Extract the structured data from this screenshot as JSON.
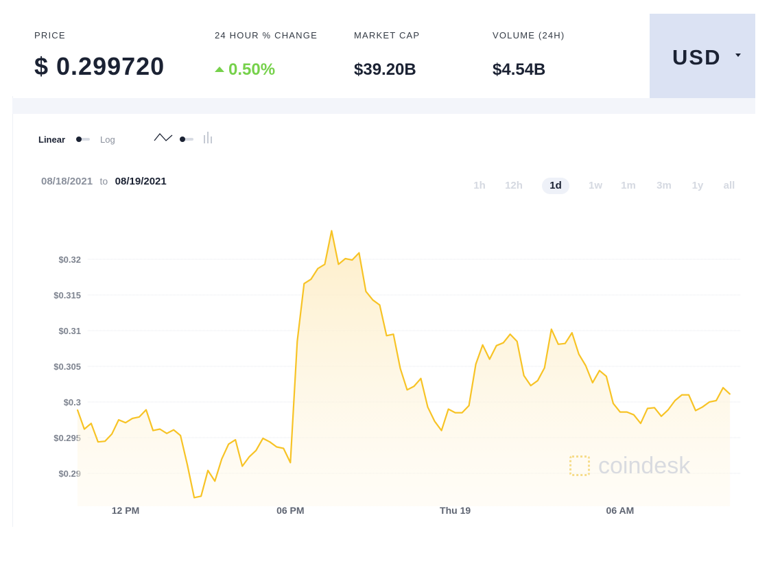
{
  "stats": {
    "price": {
      "label": "PRICE",
      "value": "$ 0.299720"
    },
    "change": {
      "label": "24 HOUR % CHANGE",
      "value": "0.50%"
    },
    "market_cap": {
      "label": "MARKET CAP",
      "value": "$39.20B"
    },
    "volume": {
      "label": "VOLUME (24H)",
      "value": "$4.54B"
    }
  },
  "currency": {
    "selected": "USD"
  },
  "controls": {
    "linear": "Linear",
    "log": "Log"
  },
  "date_range": {
    "from": "08/18/2021",
    "to_word": "to",
    "to": "08/19/2021"
  },
  "range_tabs": [
    {
      "label": "1h",
      "active": false
    },
    {
      "label": "12h",
      "active": false
    },
    {
      "label": "1d",
      "active": true
    },
    {
      "label": "1w",
      "active": false
    },
    {
      "label": "1m",
      "active": false
    },
    {
      "label": "3m",
      "active": false
    },
    {
      "label": "1y",
      "active": false
    },
    {
      "label": "all",
      "active": false
    }
  ],
  "watermark": {
    "text": "coindesk"
  },
  "colors": {
    "line": "#f7c325",
    "area_top": "#fdecc2",
    "positive": "#76d14b",
    "currency_bg": "#dbe2f3"
  },
  "chart_data": {
    "type": "area",
    "title": "",
    "xlabel": "",
    "ylabel": "",
    "y_scale": "linear",
    "ylim": [
      0.2865,
      0.3245
    ],
    "grid": true,
    "legend": "none",
    "y_ticks": [
      {
        "value": 0.32,
        "label": "$0.32"
      },
      {
        "value": 0.315,
        "label": "$0.315"
      },
      {
        "value": 0.31,
        "label": "$0.31"
      },
      {
        "value": 0.305,
        "label": "$0.305"
      },
      {
        "value": 0.3,
        "label": "$0.3"
      },
      {
        "value": 0.295,
        "label": "$0.295"
      },
      {
        "value": 0.29,
        "label": "$0.29"
      }
    ],
    "x_ticks": [
      {
        "value": "2021-08-18 12:00",
        "label": "12 PM"
      },
      {
        "value": "2021-08-18 18:00",
        "label": "06 PM"
      },
      {
        "value": "2021-08-19 00:00",
        "label": "Thu 19"
      },
      {
        "value": "2021-08-19 06:00",
        "label": "06 AM"
      }
    ],
    "series": [
      {
        "x": [
          "2021-08-18 10:15",
          "2021-08-18 10:30",
          "2021-08-18 10:45",
          "2021-08-18 11:00",
          "2021-08-18 11:15",
          "2021-08-18 11:30",
          "2021-08-18 11:45",
          "2021-08-18 12:00",
          "2021-08-18 12:15",
          "2021-08-18 12:30",
          "2021-08-18 12:45",
          "2021-08-18 13:00",
          "2021-08-18 13:15",
          "2021-08-18 13:30",
          "2021-08-18 13:45",
          "2021-08-18 14:00",
          "2021-08-18 14:15",
          "2021-08-18 14:30",
          "2021-08-18 14:45",
          "2021-08-18 15:00",
          "2021-08-18 15:15",
          "2021-08-18 15:30",
          "2021-08-18 15:45",
          "2021-08-18 16:00",
          "2021-08-18 16:15",
          "2021-08-18 16:30",
          "2021-08-18 16:45",
          "2021-08-18 17:00",
          "2021-08-18 17:15",
          "2021-08-18 17:30",
          "2021-08-18 17:45",
          "2021-08-18 18:00",
          "2021-08-18 18:15",
          "2021-08-18 18:30",
          "2021-08-18 18:45",
          "2021-08-18 19:00",
          "2021-08-18 19:15",
          "2021-08-18 19:30",
          "2021-08-18 19:45",
          "2021-08-18 20:00",
          "2021-08-18 20:15",
          "2021-08-18 20:30",
          "2021-08-18 20:45",
          "2021-08-18 21:00",
          "2021-08-18 21:15",
          "2021-08-18 21:30",
          "2021-08-18 21:45",
          "2021-08-18 22:00",
          "2021-08-18 22:15",
          "2021-08-18 22:30",
          "2021-08-18 22:45",
          "2021-08-18 23:00",
          "2021-08-18 23:15",
          "2021-08-18 23:30",
          "2021-08-18 23:45",
          "2021-08-19 00:00",
          "2021-08-19 00:15",
          "2021-08-19 00:30",
          "2021-08-19 00:45",
          "2021-08-19 01:00",
          "2021-08-19 01:15",
          "2021-08-19 01:30",
          "2021-08-19 01:45",
          "2021-08-19 02:00",
          "2021-08-19 02:15",
          "2021-08-19 02:30",
          "2021-08-19 02:45",
          "2021-08-19 03:00",
          "2021-08-19 03:15",
          "2021-08-19 03:30",
          "2021-08-19 03:45",
          "2021-08-19 04:00",
          "2021-08-19 04:15",
          "2021-08-19 04:30",
          "2021-08-19 04:45",
          "2021-08-19 05:00",
          "2021-08-19 05:15",
          "2021-08-19 05:30",
          "2021-08-19 05:45",
          "2021-08-19 06:00",
          "2021-08-19 06:15",
          "2021-08-19 06:30",
          "2021-08-19 06:45",
          "2021-08-19 07:00",
          "2021-08-19 07:15",
          "2021-08-19 07:30",
          "2021-08-19 07:45",
          "2021-08-19 08:00",
          "2021-08-19 08:15",
          "2021-08-19 08:30",
          "2021-08-19 08:45",
          "2021-08-19 09:00",
          "2021-08-19 09:15",
          "2021-08-19 09:30",
          "2021-08-19 09:45",
          "2021-08-19 10:00"
        ],
        "values": [
          0.2989,
          0.2962,
          0.297,
          0.2944,
          0.2945,
          0.2955,
          0.2975,
          0.2971,
          0.2977,
          0.2979,
          0.2989,
          0.296,
          0.2962,
          0.2956,
          0.2961,
          0.2953,
          0.2912,
          0.2866,
          0.2868,
          0.2904,
          0.2889,
          0.292,
          0.2941,
          0.2947,
          0.291,
          0.2923,
          0.2932,
          0.2949,
          0.2944,
          0.2937,
          0.2935,
          0.2915,
          0.3085,
          0.3166,
          0.3172,
          0.3187,
          0.3193,
          0.324,
          0.3193,
          0.3201,
          0.3199,
          0.3209,
          0.3155,
          0.3143,
          0.3136,
          0.3093,
          0.3095,
          0.3047,
          0.3017,
          0.3022,
          0.3033,
          0.2993,
          0.2973,
          0.296,
          0.299,
          0.2985,
          0.2985,
          0.2995,
          0.3053,
          0.308,
          0.306,
          0.3079,
          0.3083,
          0.3095,
          0.3085,
          0.3037,
          0.3023,
          0.303,
          0.3048,
          0.3102,
          0.3081,
          0.3082,
          0.3097,
          0.3067,
          0.3051,
          0.3027,
          0.3044,
          0.3036,
          0.2998,
          0.2986,
          0.2986,
          0.2982,
          0.297,
          0.2991,
          0.2992,
          0.298,
          0.2989,
          0.3002,
          0.301,
          0.301,
          0.2988,
          0.2993,
          0.3,
          0.3002,
          0.302,
          0.3011
        ]
      }
    ]
  }
}
